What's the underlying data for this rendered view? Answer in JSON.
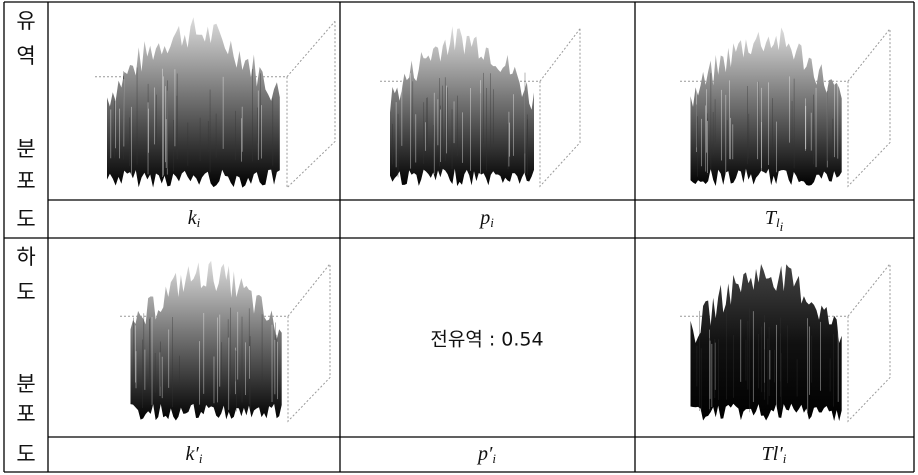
{
  "row_headers": [
    [
      "유",
      "역",
      "분",
      "포",
      "도"
    ],
    [
      "하",
      "도",
      "분",
      "포",
      "도"
    ]
  ],
  "labels": [
    [
      {
        "base": "k",
        "sub": "i"
      },
      {
        "base": "p",
        "sub": "i"
      },
      {
        "base": "T",
        "sub": "l",
        "subsub": "i"
      }
    ],
    [
      {
        "base": "k′",
        "sub": "i"
      },
      {
        "base": "p′",
        "sub": "i"
      },
      {
        "base": "Tl′",
        "sub": "i"
      }
    ]
  ],
  "center_text": "전유역 : 0.54"
}
